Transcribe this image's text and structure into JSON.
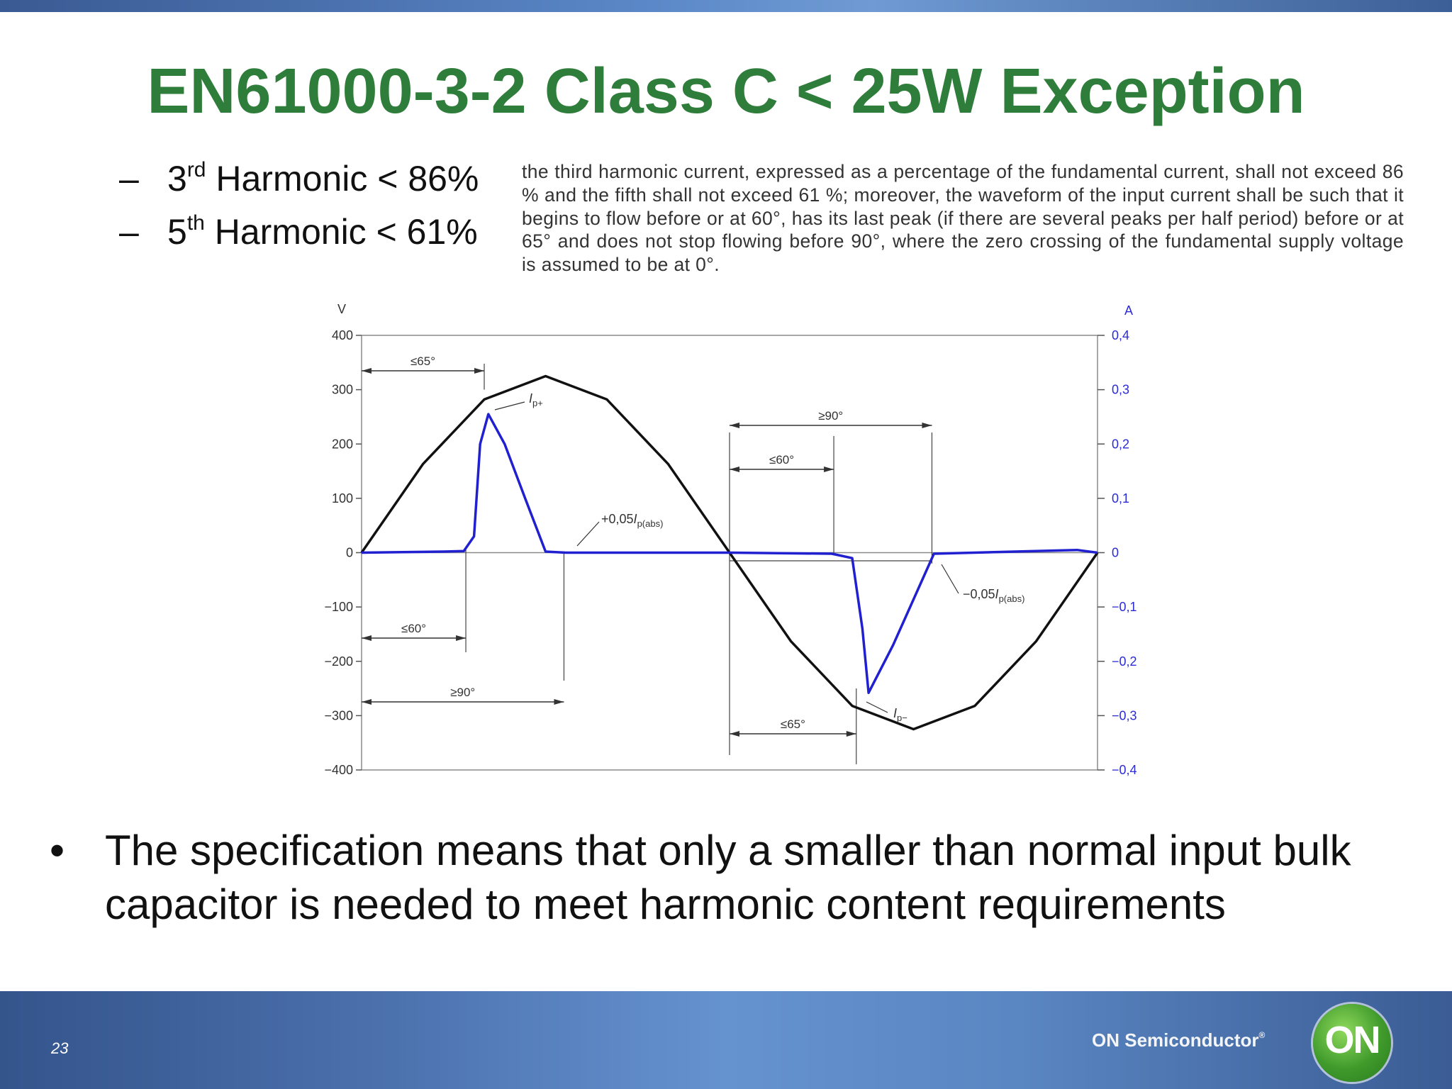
{
  "slide": {
    "title": "EN61000-3-2 Class C < 25W Exception",
    "sub_items": [
      {
        "dash": "–",
        "num": "3",
        "sup": "rd",
        "text": " Harmonic < 86%"
      },
      {
        "dash": "–",
        "num": "5",
        "sup": "th",
        "text": " Harmonic < 61%"
      }
    ],
    "quote": "the third harmonic current, expressed as a percentage of the fundamental current, shall not exceed 86 % and the fifth shall not exceed 61 %; moreover, the waveform of the input current shall be such that it begins to flow before or at 60°, has its last peak (if there are several peaks per half period) before or at 65° and does not stop flowing before 90°, where the zero crossing of the fundamental supply voltage is assumed to be at 0°.",
    "bullet_symbol": "•",
    "bullet": "The specification means that only a smaller than normal input bulk capacitor is needed to meet harmonic content requirements",
    "page_number": "23",
    "company": "ON Semiconductor",
    "company_mark": "®",
    "logo_text": "ON"
  },
  "chart_data": {
    "type": "line",
    "left_axis": {
      "unit": "V",
      "ticks": [
        "400",
        "300",
        "200",
        "100",
        "0",
        "−100",
        "−200",
        "−300",
        "−400"
      ],
      "ylim": [
        -400,
        400
      ]
    },
    "right_axis": {
      "unit": "A",
      "ticks": [
        "0,4",
        "0,3",
        "0,2",
        "0,1",
        "0",
        "−0,1",
        "−0,2",
        "−0,3",
        "−0,4"
      ],
      "ylim": [
        -0.4,
        0.4
      ],
      "color": "#2b2bd6"
    },
    "xlim_deg": [
      0,
      360
    ],
    "series": [
      {
        "quantity": "voltage",
        "color": "#111111",
        "x": [
          0,
          30,
          60,
          90,
          120,
          150,
          180,
          210,
          240,
          270,
          300,
          330,
          360
        ],
        "y": [
          0,
          163,
          282,
          325,
          282,
          163,
          0,
          -163,
          -282,
          -325,
          -282,
          -163,
          0
        ]
      },
      {
        "quantity": "current",
        "color": "#2020d0",
        "x": [
          0,
          40,
          50,
          55,
          58,
          62,
          70,
          80,
          90,
          100,
          180,
          230,
          240,
          245,
          248,
          260,
          280,
          350,
          360
        ],
        "y": [
          0,
          0.002,
          0.003,
          0.03,
          0.2,
          0.255,
          0.2,
          0.1,
          0.002,
          0,
          0,
          -0.002,
          -0.01,
          -0.14,
          -0.258,
          -0.17,
          -0.002,
          0.005,
          0
        ]
      }
    ],
    "labels": {
      "ip_plus_main": "I",
      "ip_plus_sub": "p+",
      "ip_minus_main": "I",
      "ip_minus_sub": "p−",
      "pos_thresh_main": "+0,05",
      "pos_thresh_i": "I",
      "pos_thresh_sub": "p(abs)",
      "neg_thresh_main": "−0,05",
      "neg_thresh_i": "I",
      "neg_thresh_sub": "p(abs)"
    },
    "dimensions": [
      {
        "label": "≤65°",
        "from_deg": 0,
        "to_deg": 60
      },
      {
        "label": "≤60°",
        "from_deg": 0,
        "to_deg": 51
      },
      {
        "label": "≥90°",
        "from_deg": 0,
        "to_deg": 99
      },
      {
        "label": "≥90°",
        "from_deg": 180,
        "to_deg": 279
      },
      {
        "label": "≤60°",
        "from_deg": 180,
        "to_deg": 231
      },
      {
        "label": "≤65°",
        "from_deg": 180,
        "to_deg": 242
      }
    ]
  }
}
